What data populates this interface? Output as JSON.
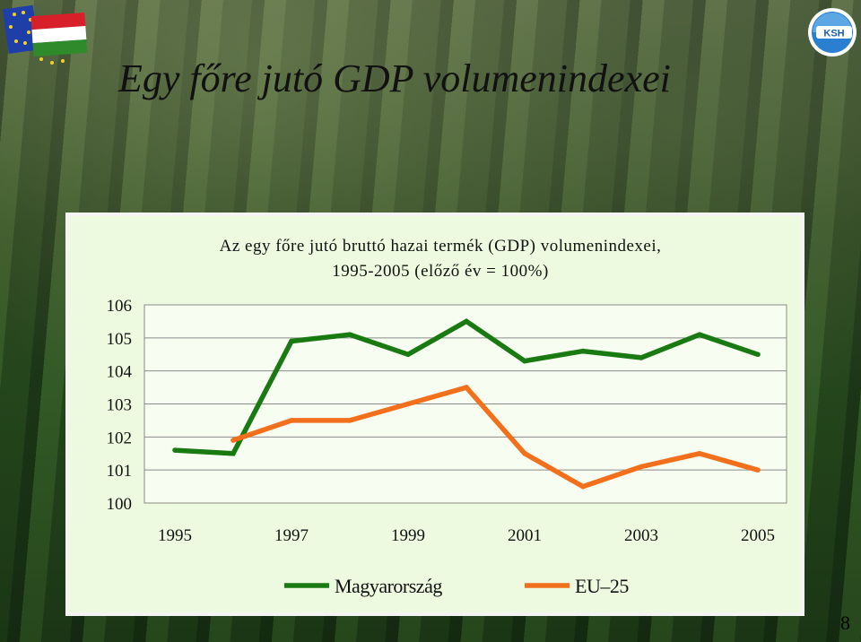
{
  "slide": {
    "title": "Egy főre jutó GDP volumenindexei",
    "page_number": "8"
  },
  "logos": {
    "left_icon": "eu-hungary-flag-icon",
    "right_icon": "ksh-logo-icon",
    "right_text": "KSH"
  },
  "colors": {
    "panel_bg": "#eefadf",
    "hungary": "#1a7a12",
    "eu25": "#f26f1c"
  },
  "chart_data": {
    "type": "line",
    "title": "Az egy főre jutó bruttó hazai termék (GDP) volumenindexei,",
    "subtitle": "1995-2005 (előző év = 100%)",
    "xlabel": "",
    "ylabel": "",
    "x": [
      1995,
      1996,
      1997,
      1998,
      1999,
      2000,
      2001,
      2002,
      2003,
      2004,
      2005
    ],
    "x_tick_labels": [
      "1995",
      "1997",
      "1999",
      "2001",
      "2003",
      "2005"
    ],
    "y_tick_labels": [
      "100",
      "101",
      "102",
      "103",
      "104",
      "105",
      "106"
    ],
    "ylim": [
      100,
      106
    ],
    "grid": "horizontal",
    "legend_position": "bottom",
    "series": [
      {
        "name": "Magyarország",
        "color": "#1a7a12",
        "values": [
          101.6,
          101.5,
          104.9,
          105.1,
          104.5,
          105.5,
          104.3,
          104.6,
          104.4,
          105.1,
          104.5
        ]
      },
      {
        "name": "EU–25",
        "color": "#f26f1c",
        "values": [
          null,
          101.9,
          102.5,
          102.5,
          103.0,
          103.5,
          101.5,
          100.5,
          101.1,
          101.5,
          101.0
        ]
      }
    ]
  }
}
